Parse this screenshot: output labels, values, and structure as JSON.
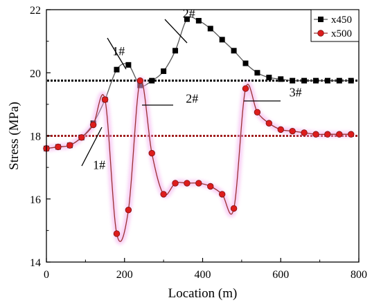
{
  "chart_data": {
    "type": "line",
    "xlabel": "Location (m)",
    "ylabel": "Stress (MPa)",
    "xlim": [
      0,
      800
    ],
    "ylim": [
      14,
      22
    ],
    "xticks": [
      0,
      200,
      400,
      600,
      800
    ],
    "yticks": [
      14,
      16,
      18,
      20,
      22
    ],
    "grid": false,
    "legend_position": "top-right",
    "series": [
      {
        "name": "x450",
        "color": "#000000",
        "line_color": "#555555",
        "marker": "square",
        "x": [
          0,
          30,
          60,
          90,
          120,
          150,
          180,
          210,
          240,
          270,
          300,
          330,
          360,
          390,
          420,
          450,
          480,
          510,
          540,
          570,
          600,
          630,
          660,
          690,
          720,
          750,
          780
        ],
        "y": [
          17.6,
          17.65,
          17.7,
          17.95,
          18.4,
          19.15,
          20.1,
          20.25,
          19.6,
          19.75,
          20.05,
          20.7,
          21.7,
          21.65,
          21.4,
          21.05,
          20.7,
          20.3,
          20.0,
          19.85,
          19.8,
          19.75,
          19.75,
          19.75,
          19.75,
          19.75,
          19.75
        ]
      },
      {
        "name": "x500",
        "color": "#dd1c1c",
        "line_color": "#9a3030",
        "marker": "circle",
        "x": [
          0,
          30,
          60,
          90,
          120,
          150,
          180,
          210,
          240,
          270,
          300,
          330,
          360,
          390,
          420,
          450,
          480,
          510,
          540,
          570,
          600,
          630,
          660,
          690,
          720,
          750,
          780
        ],
        "y": [
          17.6,
          17.65,
          17.7,
          17.95,
          18.35,
          19.15,
          14.9,
          15.65,
          19.75,
          17.45,
          16.15,
          16.5,
          16.5,
          16.5,
          16.4,
          16.15,
          15.7,
          19.5,
          18.75,
          18.4,
          18.2,
          18.15,
          18.1,
          18.05,
          18.05,
          18.05,
          18.05
        ]
      }
    ],
    "reference_lines": [
      {
        "y": 19.75,
        "color": "#000000"
      },
      {
        "y": 18.0,
        "color": "#a02020"
      }
    ],
    "annotations": [
      {
        "text": "1#",
        "x": 185,
        "y": 20.55
      },
      {
        "text": "2#",
        "x": 365,
        "y": 21.75
      },
      {
        "text": "2#",
        "x": 357,
        "y": 19.05
      },
      {
        "text": "3#",
        "x": 622,
        "y": 19.25
      },
      {
        "text": "1#",
        "x": 135,
        "y": 16.95
      }
    ]
  }
}
